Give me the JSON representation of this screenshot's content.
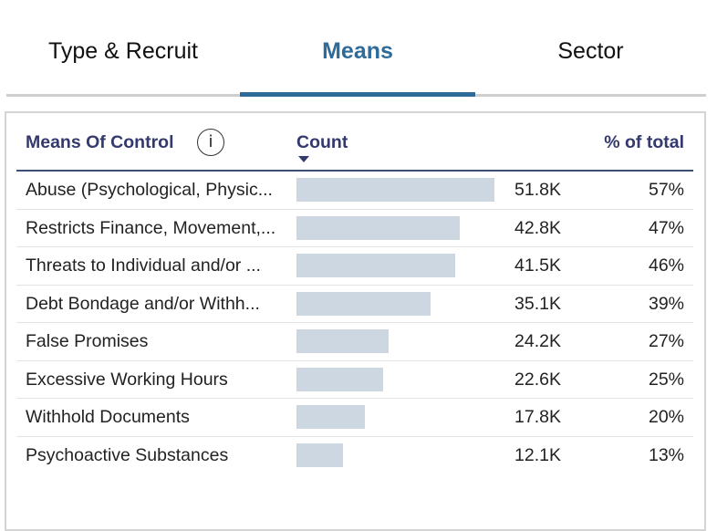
{
  "tabs": [
    {
      "label": "Type & Recruit",
      "active": false
    },
    {
      "label": "Means",
      "active": true
    },
    {
      "label": "Sector",
      "active": false
    }
  ],
  "table": {
    "headers": {
      "name": "Means Of Control",
      "info_icon": "i",
      "count": "Count",
      "percent": "% of total"
    },
    "sorted_column": "count",
    "sort_direction": "descending",
    "rows": [
      {
        "name": "Abuse (Psychological, Physic...",
        "count": "51.8K",
        "count_value": 51800,
        "percent": "57%"
      },
      {
        "name": "Restricts Finance, Movement,...",
        "count": "42.8K",
        "count_value": 42800,
        "percent": "47%"
      },
      {
        "name": "Threats to Individual and/or ...",
        "count": "41.5K",
        "count_value": 41500,
        "percent": "46%"
      },
      {
        "name": "Debt Bondage and/or Withh...",
        "count": "35.1K",
        "count_value": 35100,
        "percent": "39%"
      },
      {
        "name": "False Promises",
        "count": "24.2K",
        "count_value": 24200,
        "percent": "27%"
      },
      {
        "name": "Excessive Working Hours",
        "count": "22.6K",
        "count_value": 22600,
        "percent": "25%"
      },
      {
        "name": "Withhold Documents",
        "count": "17.8K",
        "count_value": 17800,
        "percent": "20%"
      },
      {
        "name": "Psychoactive Substances",
        "count": "12.1K",
        "count_value": 12100,
        "percent": "13%"
      }
    ]
  },
  "colors": {
    "accent": "#2e6b99",
    "header_text": "#34396e",
    "bar": "#cdd7e1"
  }
}
